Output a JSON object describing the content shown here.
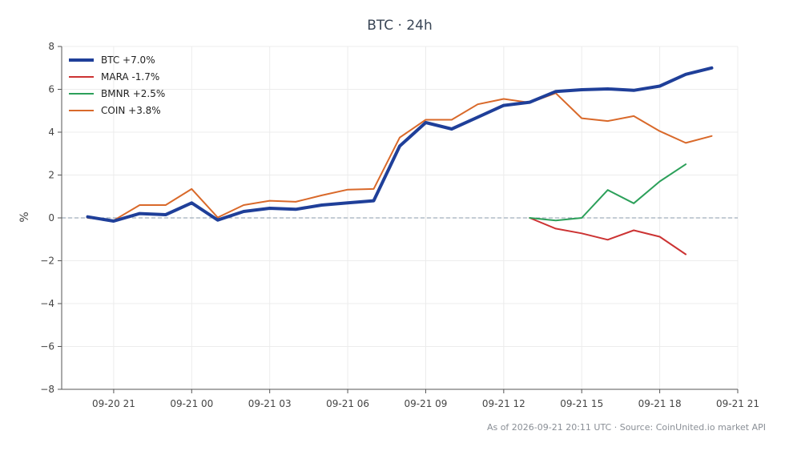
{
  "chart_data": {
    "type": "line",
    "title": "BTC · 24h",
    "ylabel": "%",
    "xlabel": "",
    "ylim": [
      -8,
      8
    ],
    "yticks": [
      -8,
      -6,
      -4,
      -2,
      0,
      2,
      4,
      6,
      8
    ],
    "xlim": [
      "2026-09-20 19:00",
      "2026-09-21 21:00"
    ],
    "xticks": [
      {
        "label": "09-20 21",
        "t": "2026-09-20 21:00"
      },
      {
        "label": "09-21 00",
        "t": "2026-09-21 00:00"
      },
      {
        "label": "09-21 03",
        "t": "2026-09-21 03:00"
      },
      {
        "label": "09-21 06",
        "t": "2026-09-21 06:00"
      },
      {
        "label": "09-21 09",
        "t": "2026-09-21 09:00"
      },
      {
        "label": "09-21 12",
        "t": "2026-09-21 12:00"
      },
      {
        "label": "09-21 15",
        "t": "2026-09-21 15:00"
      },
      {
        "label": "09-21 18",
        "t": "2026-09-21 18:00"
      },
      {
        "label": "09-21 21",
        "t": "2026-09-21 21:00"
      }
    ],
    "grid": true,
    "zero_line": true,
    "legend_position": "top-left",
    "series": [
      {
        "name": "BTC +7.0%",
        "color": "#1f3f99",
        "width": 4,
        "x": [
          "2026-09-20 20:00",
          "2026-09-20 21:00",
          "2026-09-20 22:00",
          "2026-09-20 23:00",
          "2026-09-21 00:00",
          "2026-09-21 01:00",
          "2026-09-21 02:00",
          "2026-09-21 03:00",
          "2026-09-21 04:00",
          "2026-09-21 05:00",
          "2026-09-21 06:00",
          "2026-09-21 07:00",
          "2026-09-21 08:00",
          "2026-09-21 09:00",
          "2026-09-21 10:00",
          "2026-09-21 11:00",
          "2026-09-21 12:00",
          "2026-09-21 13:00",
          "2026-09-21 14:00",
          "2026-09-21 15:00",
          "2026-09-21 16:00",
          "2026-09-21 17:00",
          "2026-09-21 18:00",
          "2026-09-21 19:00",
          "2026-09-21 20:00"
        ],
        "values": [
          0.05,
          -0.15,
          0.2,
          0.15,
          0.7,
          -0.1,
          0.3,
          0.45,
          0.4,
          0.6,
          0.7,
          0.8,
          3.35,
          4.45,
          4.15,
          4.7,
          5.25,
          5.4,
          5.9,
          5.98,
          6.02,
          5.95,
          6.15,
          6.7,
          7.0
        ]
      },
      {
        "name": "MARA -1.7%",
        "color": "#cc3333",
        "width": 2,
        "x": [
          "2026-09-21 13:00",
          "2026-09-21 14:00",
          "2026-09-21 15:00",
          "2026-09-21 16:00",
          "2026-09-21 17:00",
          "2026-09-21 18:00",
          "2026-09-21 19:00"
        ],
        "values": [
          0.0,
          -0.5,
          -0.72,
          -1.02,
          -0.58,
          -0.88,
          -1.7
        ]
      },
      {
        "name": "BMNR +2.5%",
        "color": "#2ca05a",
        "width": 2,
        "x": [
          "2026-09-21 13:00",
          "2026-09-21 14:00",
          "2026-09-21 15:00",
          "2026-09-21 16:00",
          "2026-09-21 17:00",
          "2026-09-21 18:00",
          "2026-09-21 19:00"
        ],
        "values": [
          0.0,
          -0.12,
          0.0,
          1.3,
          0.68,
          1.7,
          2.5
        ]
      },
      {
        "name": "COIN +3.8%",
        "color": "#d9692a",
        "width": 2,
        "x": [
          "2026-09-20 20:00",
          "2026-09-20 21:00",
          "2026-09-20 22:00",
          "2026-09-20 23:00",
          "2026-09-21 00:00",
          "2026-09-21 01:00",
          "2026-09-21 02:00",
          "2026-09-21 03:00",
          "2026-09-21 04:00",
          "2026-09-21 05:00",
          "2026-09-21 06:00",
          "2026-09-21 07:00",
          "2026-09-21 08:00",
          "2026-09-21 09:00",
          "2026-09-21 10:00",
          "2026-09-21 11:00",
          "2026-09-21 12:00",
          "2026-09-21 13:00",
          "2026-09-21 14:00",
          "2026-09-21 15:00",
          "2026-09-21 16:00",
          "2026-09-21 17:00",
          "2026-09-21 18:00",
          "2026-09-21 19:00",
          "2026-09-21 20:00"
        ],
        "values": [
          0.0,
          -0.12,
          0.6,
          0.6,
          1.35,
          0.02,
          0.6,
          0.8,
          0.75,
          1.05,
          1.32,
          1.35,
          3.75,
          4.58,
          4.58,
          5.3,
          5.55,
          5.38,
          5.82,
          4.65,
          4.52,
          4.75,
          4.05,
          3.5,
          3.82
        ]
      }
    ],
    "footnote": "As of 2026-09-21 20:11 UTC · Source: CoinUnited.io market API"
  }
}
